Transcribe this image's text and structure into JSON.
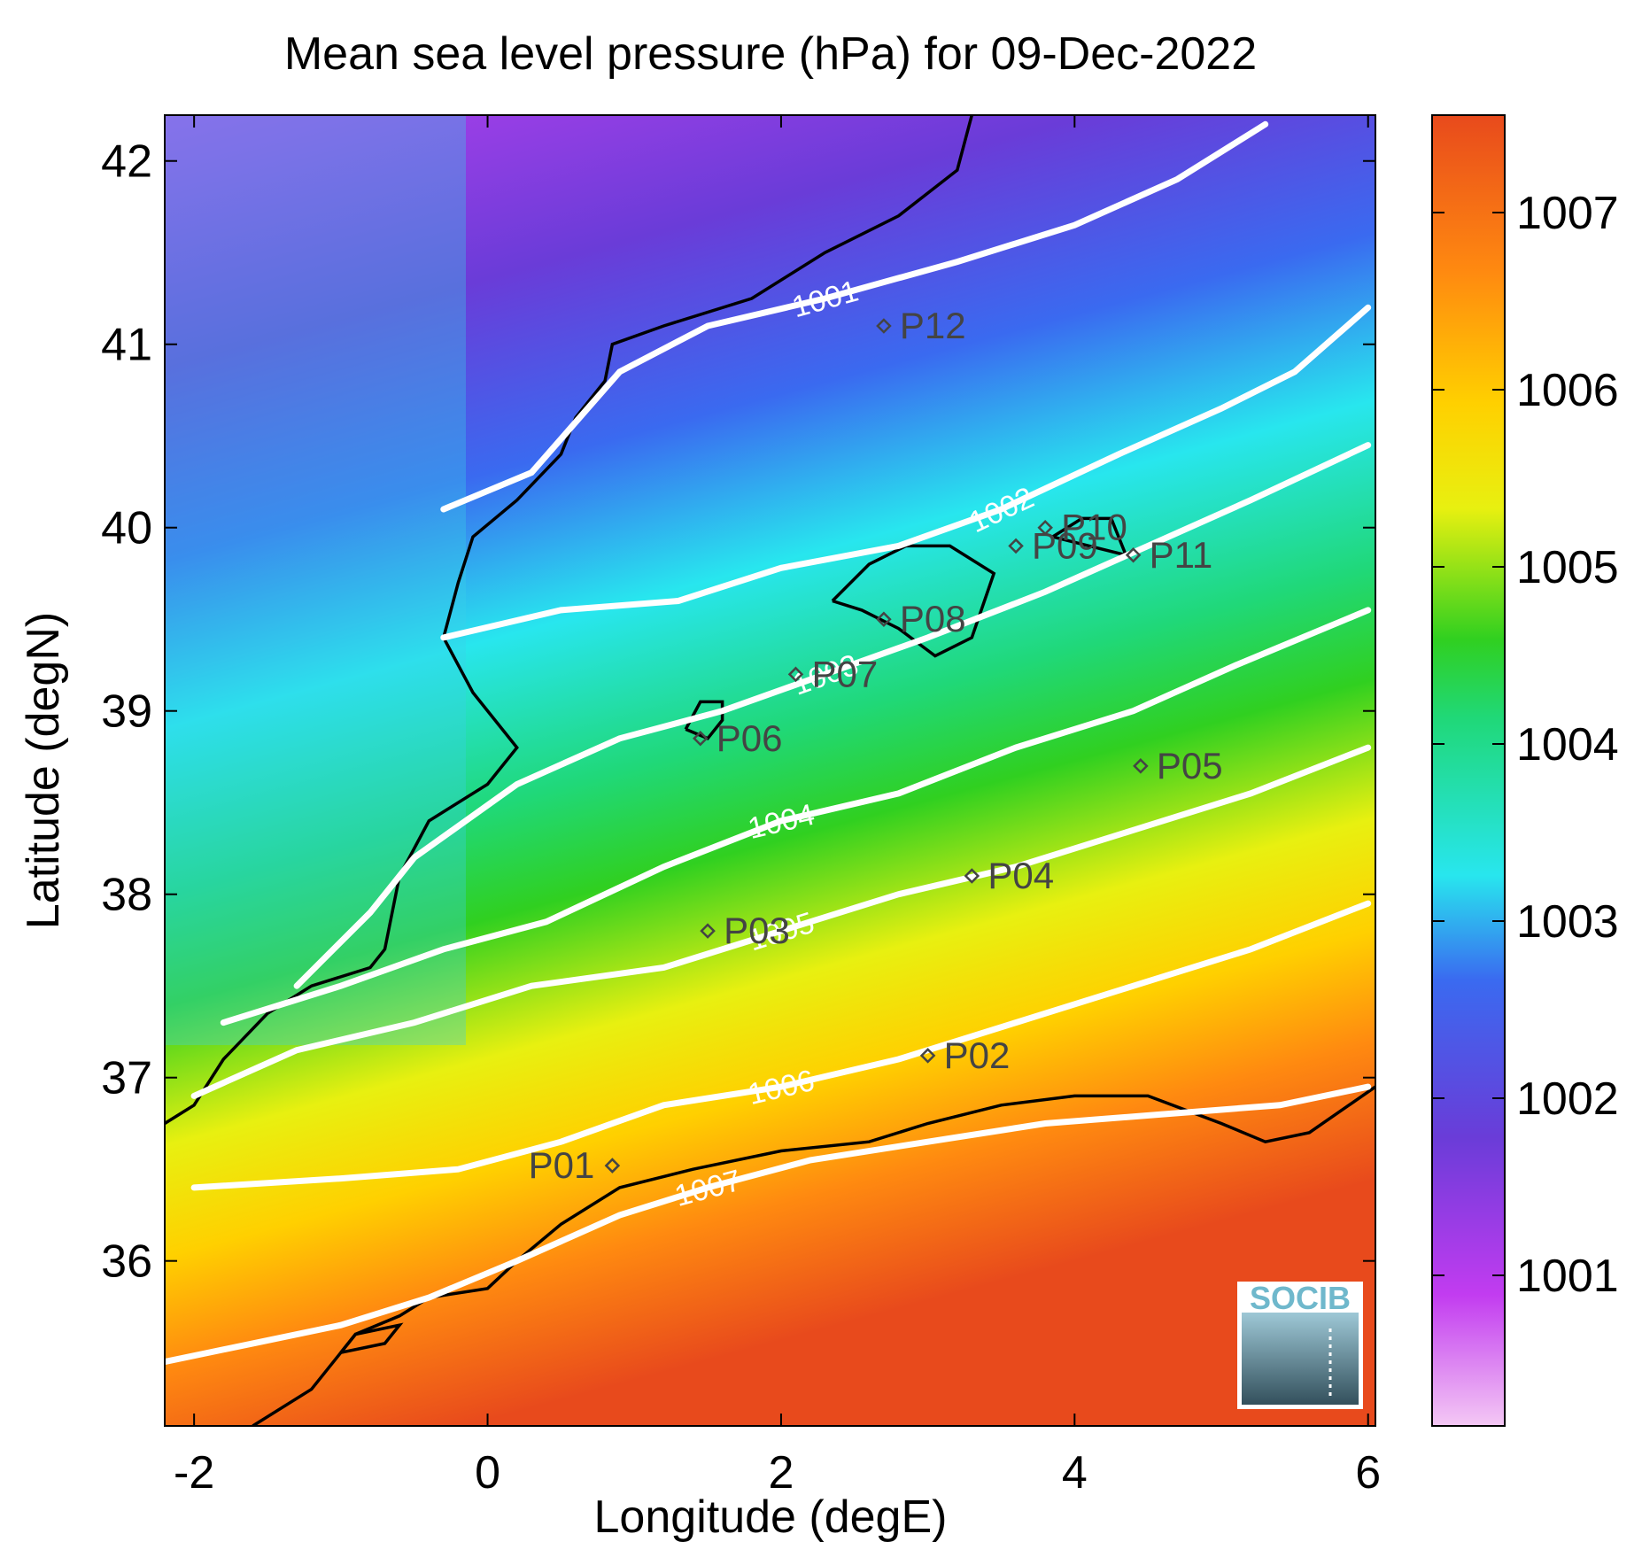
{
  "title": "Mean sea level pressure (hPa) for 09-Dec-2022",
  "xlabel": "Longitude (degE)",
  "ylabel": "Latitude (degN)",
  "x_ticks": [
    "-2",
    "0",
    "2",
    "4",
    "6"
  ],
  "y_ticks": [
    "42",
    "41",
    "40",
    "39",
    "38",
    "37",
    "36"
  ],
  "colorbar_ticks": [
    "1007",
    "1006",
    "1005",
    "1004",
    "1003",
    "1002",
    "1001"
  ],
  "logo_text": "SOCIB",
  "chart_data": {
    "type": "heatmap",
    "variable": "Mean sea level pressure (hPa)",
    "date": "09-Dec-2022",
    "xlim": [
      -2.2,
      6.05
    ],
    "ylim": [
      35.1,
      42.25
    ],
    "colorbar_range": [
      1000.15,
      1007.55
    ],
    "colormap": [
      "#f4c8f4",
      "#c23cf0",
      "#6a3cd8",
      "#3a6af0",
      "#28e6ee",
      "#20d878",
      "#30d020",
      "#e8f010",
      "#ffd000",
      "#ff8a10",
      "#e84a1c"
    ],
    "isobar_color": "#ffffff",
    "coastline_color": "#000000",
    "isobars": [
      {
        "label": "1001",
        "points": [
          [
            -0.3,
            40.1
          ],
          [
            0.3,
            40.3
          ],
          [
            0.9,
            40.85
          ],
          [
            1.5,
            41.1
          ],
          [
            2.3,
            41.25
          ],
          [
            3.2,
            41.45
          ],
          [
            4.0,
            41.65
          ],
          [
            4.7,
            41.9
          ],
          [
            5.3,
            42.2
          ]
        ]
      },
      {
        "label": "1002",
        "points": [
          [
            -0.3,
            39.4
          ],
          [
            0.5,
            39.55
          ],
          [
            1.3,
            39.6
          ],
          [
            2.0,
            39.78
          ],
          [
            2.8,
            39.9
          ],
          [
            3.5,
            40.1
          ],
          [
            4.3,
            40.4
          ],
          [
            5.0,
            40.65
          ],
          [
            5.5,
            40.85
          ],
          [
            6.0,
            41.2
          ]
        ]
      },
      {
        "label": "1003",
        "points": [
          [
            -1.3,
            37.5
          ],
          [
            -0.8,
            37.9
          ],
          [
            -0.5,
            38.2
          ],
          [
            0.2,
            38.6
          ],
          [
            0.9,
            38.85
          ],
          [
            1.6,
            39.0
          ],
          [
            2.3,
            39.2
          ],
          [
            3.0,
            39.4
          ],
          [
            3.8,
            39.65
          ],
          [
            4.5,
            39.9
          ],
          [
            5.2,
            40.15
          ],
          [
            6.0,
            40.45
          ]
        ]
      },
      {
        "label": "1004",
        "points": [
          [
            -1.8,
            37.3
          ],
          [
            -1.0,
            37.5
          ],
          [
            -0.3,
            37.7
          ],
          [
            0.4,
            37.85
          ],
          [
            1.2,
            38.15
          ],
          [
            2.0,
            38.4
          ],
          [
            2.8,
            38.55
          ],
          [
            3.6,
            38.8
          ],
          [
            4.4,
            39.0
          ],
          [
            5.1,
            39.25
          ],
          [
            6.0,
            39.55
          ]
        ]
      },
      {
        "label": "1005",
        "points": [
          [
            -2.0,
            36.9
          ],
          [
            -1.3,
            37.15
          ],
          [
            -0.5,
            37.3
          ],
          [
            0.3,
            37.5
          ],
          [
            1.2,
            37.6
          ],
          [
            2.0,
            37.8
          ],
          [
            2.8,
            38.0
          ],
          [
            3.6,
            38.15
          ],
          [
            4.4,
            38.35
          ],
          [
            5.2,
            38.55
          ],
          [
            6.0,
            38.8
          ]
        ]
      },
      {
        "label": "1006",
        "points": [
          [
            -2.0,
            36.4
          ],
          [
            -1.0,
            36.45
          ],
          [
            -0.2,
            36.5
          ],
          [
            0.5,
            36.65
          ],
          [
            1.2,
            36.85
          ],
          [
            2.0,
            36.95
          ],
          [
            2.8,
            37.1
          ],
          [
            3.6,
            37.3
          ],
          [
            4.4,
            37.5
          ],
          [
            5.2,
            37.7
          ],
          [
            6.0,
            37.95
          ]
        ]
      },
      {
        "label": "1007",
        "points": [
          [
            -2.2,
            35.45
          ],
          [
            -1.6,
            35.55
          ],
          [
            -1.0,
            35.65
          ],
          [
            -0.4,
            35.8
          ],
          [
            0.2,
            36.0
          ],
          [
            0.9,
            36.25
          ],
          [
            1.5,
            36.4
          ],
          [
            2.2,
            36.55
          ],
          [
            3.0,
            36.65
          ],
          [
            3.8,
            36.75
          ],
          [
            4.6,
            36.8
          ],
          [
            5.4,
            36.85
          ],
          [
            6.0,
            36.95
          ]
        ]
      }
    ],
    "stations": [
      {
        "name": "P01",
        "lon": 0.85,
        "lat": 36.52
      },
      {
        "name": "P02",
        "lon": 3.0,
        "lat": 37.12
      },
      {
        "name": "P03",
        "lon": 1.5,
        "lat": 37.8
      },
      {
        "name": "P04",
        "lon": 3.3,
        "lat": 38.1
      },
      {
        "name": "P05",
        "lon": 4.45,
        "lat": 38.7
      },
      {
        "name": "P06",
        "lon": 1.45,
        "lat": 38.85
      },
      {
        "name": "P07",
        "lon": 2.1,
        "lat": 39.2
      },
      {
        "name": "P08",
        "lon": 2.7,
        "lat": 39.5
      },
      {
        "name": "P09",
        "lon": 3.6,
        "lat": 39.9
      },
      {
        "name": "P10",
        "lon": 3.8,
        "lat": 40.0
      },
      {
        "name": "P11",
        "lon": 4.4,
        "lat": 39.85
      },
      {
        "name": "P12",
        "lon": 2.7,
        "lat": 41.1
      }
    ],
    "coastlines": [
      [
        [
          -2.2,
          36.75
        ],
        [
          -2.0,
          36.85
        ],
        [
          -1.8,
          37.1
        ],
        [
          -1.5,
          37.35
        ],
        [
          -1.2,
          37.5
        ],
        [
          -0.8,
          37.6
        ],
        [
          -0.7,
          37.7
        ],
        [
          -0.6,
          38.1
        ],
        [
          -0.4,
          38.4
        ],
        [
          0.0,
          38.6
        ],
        [
          0.2,
          38.8
        ],
        [
          0.1,
          38.9
        ],
        [
          -0.1,
          39.1
        ],
        [
          -0.3,
          39.4
        ],
        [
          -0.2,
          39.7
        ],
        [
          -0.1,
          39.95
        ],
        [
          0.2,
          40.15
        ],
        [
          0.5,
          40.4
        ],
        [
          0.6,
          40.6
        ],
        [
          0.8,
          40.8
        ],
        [
          0.85,
          41.0
        ],
        [
          1.2,
          41.1
        ],
        [
          1.8,
          41.25
        ],
        [
          2.3,
          41.5
        ],
        [
          2.8,
          41.7
        ],
        [
          3.2,
          41.95
        ],
        [
          3.3,
          42.25
        ]
      ],
      [
        [
          -1.6,
          35.1
        ],
        [
          -1.2,
          35.3
        ],
        [
          -0.9,
          35.6
        ],
        [
          -0.6,
          35.7
        ],
        [
          -0.4,
          35.8
        ],
        [
          0.0,
          35.85
        ],
        [
          0.2,
          36.0
        ],
        [
          0.5,
          36.2
        ],
        [
          0.9,
          36.4
        ],
        [
          1.4,
          36.5
        ],
        [
          2.0,
          36.6
        ],
        [
          2.6,
          36.65
        ],
        [
          3.0,
          36.75
        ],
        [
          3.5,
          36.85
        ],
        [
          4.0,
          36.9
        ],
        [
          4.5,
          36.9
        ],
        [
          5.0,
          36.75
        ],
        [
          5.3,
          36.65
        ],
        [
          5.6,
          36.7
        ],
        [
          6.05,
          36.95
        ]
      ],
      [
        [
          1.35,
          38.9
        ],
        [
          1.45,
          39.05
        ],
        [
          1.6,
          39.05
        ],
        [
          1.6,
          38.95
        ],
        [
          1.5,
          38.85
        ],
        [
          1.35,
          38.9
        ]
      ],
      [
        [
          2.35,
          39.6
        ],
        [
          2.6,
          39.8
        ],
        [
          2.85,
          39.9
        ],
        [
          3.15,
          39.9
        ],
        [
          3.45,
          39.75
        ],
        [
          3.3,
          39.4
        ],
        [
          3.05,
          39.3
        ],
        [
          2.8,
          39.45
        ],
        [
          2.55,
          39.55
        ],
        [
          2.35,
          39.6
        ]
      ],
      [
        [
          3.85,
          39.95
        ],
        [
          4.05,
          40.05
        ],
        [
          4.25,
          40.05
        ],
        [
          4.35,
          39.85
        ],
        [
          4.1,
          39.9
        ],
        [
          3.85,
          39.95
        ]
      ],
      [
        [
          -1.0,
          35.5
        ],
        [
          -0.7,
          35.55
        ],
        [
          -0.6,
          35.65
        ],
        [
          -0.9,
          35.6
        ],
        [
          -1.0,
          35.5
        ]
      ]
    ]
  }
}
